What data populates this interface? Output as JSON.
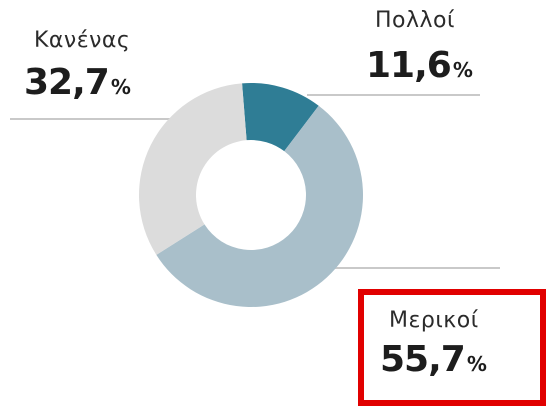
{
  "chart_data": {
    "type": "pie",
    "donut": true,
    "categories": [
      "Πολλοί",
      "Μερικοί",
      "Κανένας"
    ],
    "values": [
      11.6,
      55.7,
      32.7
    ],
    "value_labels": [
      "11,6",
      "55,7",
      "32,7"
    ],
    "unit": "%",
    "colors": [
      "#2f7d95",
      "#a9bfca",
      "#dcdcdc"
    ],
    "leader_line_color": "#c9c9c9",
    "highlight_color": "#e10000",
    "highlighted_category": "Μερικοί",
    "title": "",
    "legend": "none"
  }
}
